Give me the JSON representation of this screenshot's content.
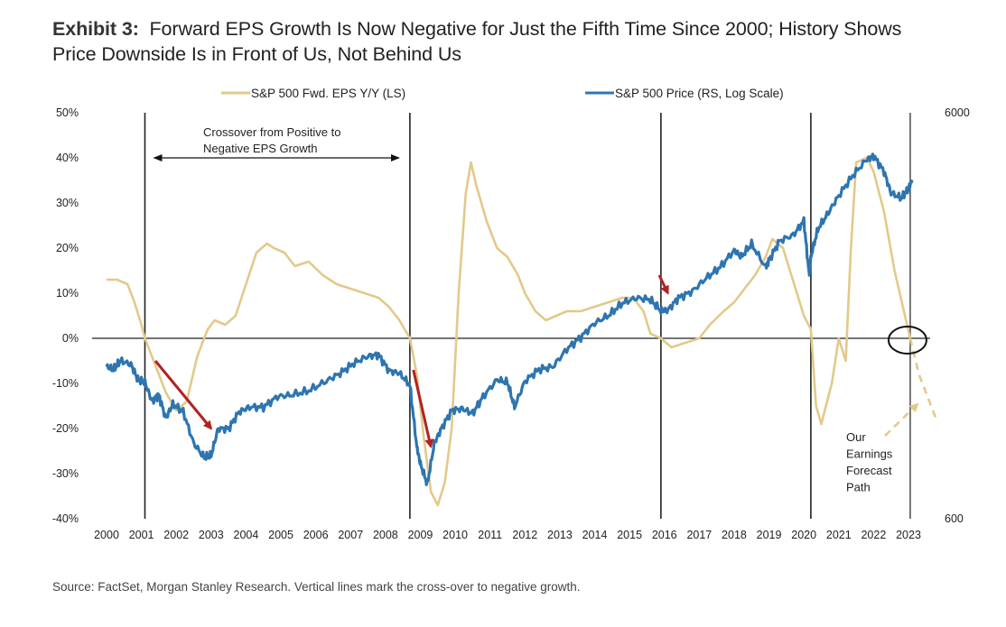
{
  "title": {
    "bold": "Exhibit 3:",
    "line1": "Forward EPS Growth Is Now Negative for Just the Fifth Time Since 2000; History Shows",
    "line2": "Price Downside Is in Front of Us, Not Behind Us"
  },
  "source": "Source: FactSet, Morgan Stanley Research. Vertical lines mark the cross-over to negative growth.",
  "colors": {
    "eps": "#e3c98a",
    "price": "#2e75b0",
    "arrow": "#b22222",
    "axis": "#222222"
  },
  "chart_data": {
    "type": "line",
    "title": "Forward EPS Growth Is Now Negative for Just the Fifth Time Since 2000; History Shows Price Downside Is in Front of Us, Not Behind Us",
    "xlabel": "",
    "ylabel_left": "S&P 500 Fwd. EPS Y/Y (LS)",
    "ylabel_right": "S&P 500 Price (RS, Log Scale)",
    "xlim": [
      2000,
      2023.4
    ],
    "ylim_left": [
      -40,
      50
    ],
    "ylim_right": [
      600,
      6000
    ],
    "right_scale": "log",
    "grid": false,
    "legend_position": "top",
    "x_ticks": [
      "2000",
      "2001",
      "2002",
      "2003",
      "2004",
      "2005",
      "2006",
      "2007",
      "2008",
      "2009",
      "2010",
      "2011",
      "2012",
      "2013",
      "2014",
      "2015",
      "2016",
      "2017",
      "2018",
      "2019",
      "2020",
      "2021",
      "2022",
      "2023"
    ],
    "y_ticks_left": [
      "50%",
      "40%",
      "30%",
      "20%",
      "10%",
      "0%",
      "-10%",
      "-20%",
      "-30%",
      "-40%"
    ],
    "y_ticks_right": [
      "6000",
      "600"
    ],
    "crossover_years": [
      2001.1,
      2008.7,
      2015.9,
      2020.2,
      2023.05
    ],
    "series": [
      {
        "name": "S&P 500 Fwd. EPS Y/Y (LS)",
        "axis": "left",
        "x": [
          2000.0,
          2000.3,
          2000.6,
          2000.8,
          2001.0,
          2001.1,
          2001.4,
          2001.7,
          2002.0,
          2002.3,
          2002.6,
          2002.9,
          2003.1,
          2003.4,
          2003.7,
          2004.0,
          2004.3,
          2004.6,
          2004.8,
          2005.1,
          2005.4,
          2005.8,
          2006.2,
          2006.6,
          2007.0,
          2007.4,
          2007.8,
          2008.1,
          2008.4,
          2008.7,
          2008.9,
          2009.1,
          2009.3,
          2009.5,
          2009.7,
          2009.9,
          2010.1,
          2010.3,
          2010.45,
          2010.6,
          2010.9,
          2011.2,
          2011.5,
          2011.8,
          2012.0,
          2012.3,
          2012.6,
          2012.9,
          2013.2,
          2013.6,
          2014.0,
          2014.4,
          2014.8,
          2015.1,
          2015.4,
          2015.6,
          2015.9,
          2016.2,
          2016.6,
          2017.0,
          2017.3,
          2017.7,
          2018.0,
          2018.3,
          2018.6,
          2018.9,
          2019.1,
          2019.4,
          2019.8,
          2020.0,
          2020.2,
          2020.35,
          2020.5,
          2020.8,
          2021.0,
          2021.2,
          2021.35,
          2021.5,
          2021.8,
          2022.0,
          2022.3,
          2022.6,
          2022.9,
          2023.05
        ],
        "values": [
          13,
          13,
          12,
          8,
          3,
          0,
          -6,
          -12,
          -16,
          -14,
          -4,
          2,
          4,
          3,
          5,
          12,
          19,
          21,
          20,
          19,
          16,
          17,
          14,
          12,
          11,
          10,
          9,
          7,
          4,
          0,
          -8,
          -22,
          -34,
          -37,
          -32,
          -20,
          10,
          32,
          39,
          34,
          26,
          20,
          18,
          14,
          10,
          6,
          4,
          5,
          6,
          6,
          7,
          8,
          9,
          9,
          6,
          1,
          0,
          -2,
          -1,
          0,
          3,
          6,
          8,
          11,
          14,
          18,
          22,
          20,
          10,
          5,
          2,
          -15,
          -19,
          -10,
          0,
          -5,
          20,
          39,
          40,
          37,
          28,
          15,
          5,
          0
        ]
      },
      {
        "name": "S&P 500 Fwd. EPS Y/Y forecast (Our Earnings Forecast Path)",
        "axis": "left",
        "style": "dashed",
        "x": [
          2023.05,
          2023.3,
          2023.8
        ],
        "values": [
          0,
          -8,
          -18
        ]
      },
      {
        "name": "S&P 500 Price (RS, Log Scale)",
        "axis": "right",
        "x": [
          2000.0,
          2000.2,
          2000.4,
          2000.7,
          2000.9,
          2001.1,
          2001.3,
          2001.5,
          2001.7,
          2001.9,
          2002.2,
          2002.5,
          2002.8,
          2003.0,
          2003.2,
          2003.5,
          2003.8,
          2004.1,
          2004.5,
          2004.9,
          2005.3,
          2005.8,
          2006.3,
          2006.7,
          2007.1,
          2007.5,
          2007.8,
          2008.1,
          2008.4,
          2008.7,
          2008.9,
          2009.0,
          2009.2,
          2009.4,
          2009.6,
          2009.9,
          2010.2,
          2010.5,
          2010.8,
          2011.2,
          2011.5,
          2011.7,
          2012.0,
          2012.4,
          2012.8,
          2013.2,
          2013.6,
          2014.0,
          2014.4,
          2014.8,
          2015.2,
          2015.6,
          2015.9,
          2016.1,
          2016.4,
          2016.8,
          2017.2,
          2017.6,
          2018.0,
          2018.2,
          2018.5,
          2018.9,
          2019.0,
          2019.3,
          2019.7,
          2020.0,
          2020.15,
          2020.2,
          2020.4,
          2020.7,
          2021.0,
          2021.4,
          2021.8,
          2022.0,
          2022.3,
          2022.5,
          2022.8,
          2023.0,
          2023.1
        ],
        "values": [
          1420,
          1400,
          1470,
          1440,
          1320,
          1300,
          1170,
          1210,
          1060,
          1150,
          1100,
          920,
          850,
          860,
          1000,
          1000,
          1100,
          1130,
          1130,
          1200,
          1210,
          1240,
          1310,
          1370,
          1450,
          1510,
          1520,
          1390,
          1370,
          1280,
          900,
          820,
          730,
          920,
          1000,
          1110,
          1120,
          1090,
          1200,
          1320,
          1300,
          1130,
          1310,
          1400,
          1420,
          1570,
          1680,
          1820,
          1900,
          2040,
          2100,
          2080,
          1950,
          1960,
          2100,
          2180,
          2350,
          2500,
          2750,
          2650,
          2850,
          2500,
          2600,
          2900,
          3000,
          3250,
          2400,
          2650,
          3100,
          3400,
          3750,
          4200,
          4600,
          4700,
          4300,
          3800,
          3700,
          3900,
          4100
        ]
      }
    ],
    "annotations": [
      {
        "text": "Crossover from Positive to Negative EPS Growth",
        "type": "double-arrow",
        "from": 2001.1,
        "to": 2008.7
      },
      {
        "text": "Our Earnings Forecast Path",
        "type": "dashed-arrow"
      },
      {
        "type": "red-arrow",
        "from": [
          2001.4,
          -5
        ],
        "to": [
          2003.0,
          -20
        ]
      },
      {
        "type": "red-arrow",
        "from": [
          2008.8,
          -7
        ],
        "to": [
          2009.3,
          -24
        ]
      },
      {
        "type": "red-arrow",
        "from": [
          2015.85,
          14
        ],
        "to": [
          2016.1,
          10
        ]
      },
      {
        "type": "ellipse",
        "at": [
          2023.05,
          0
        ]
      }
    ]
  }
}
